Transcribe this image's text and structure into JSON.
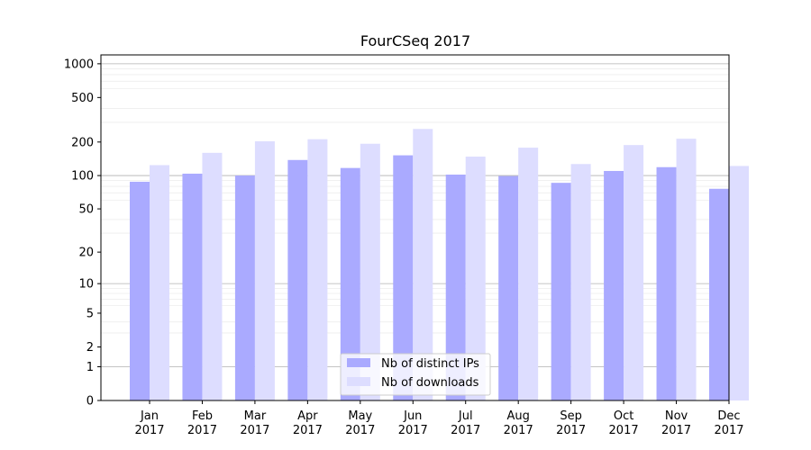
{
  "chart_data": {
    "type": "bar",
    "title": "FourCSeq 2017",
    "xlabel": "",
    "ylabel": "",
    "yscale": "log1p",
    "ylim": [
      0,
      1200
    ],
    "grid": true,
    "legend_position": "bottom-center",
    "categories": [
      "Jan\n2017",
      "Feb\n2017",
      "Mar\n2017",
      "Apr\n2017",
      "May\n2017",
      "Jun\n2017",
      "Jul\n2017",
      "Aug\n2017",
      "Sep\n2017",
      "Oct\n2017",
      "Nov\n2017",
      "Dec\n2017"
    ],
    "y_ticks": [
      0,
      1,
      2,
      5,
      10,
      20,
      50,
      100,
      200,
      500,
      1000
    ],
    "series": [
      {
        "name": "Nb of distinct IPs",
        "color": "#aaaaff",
        "values": [
          88,
          104,
          100,
          138,
          117,
          152,
          102,
          99,
          86,
          110,
          119,
          76
        ]
      },
      {
        "name": "Nb of downloads",
        "color": "#ddddff",
        "values": [
          124,
          160,
          203,
          212,
          193,
          262,
          148,
          178,
          127,
          188,
          214,
          122
        ]
      }
    ]
  }
}
